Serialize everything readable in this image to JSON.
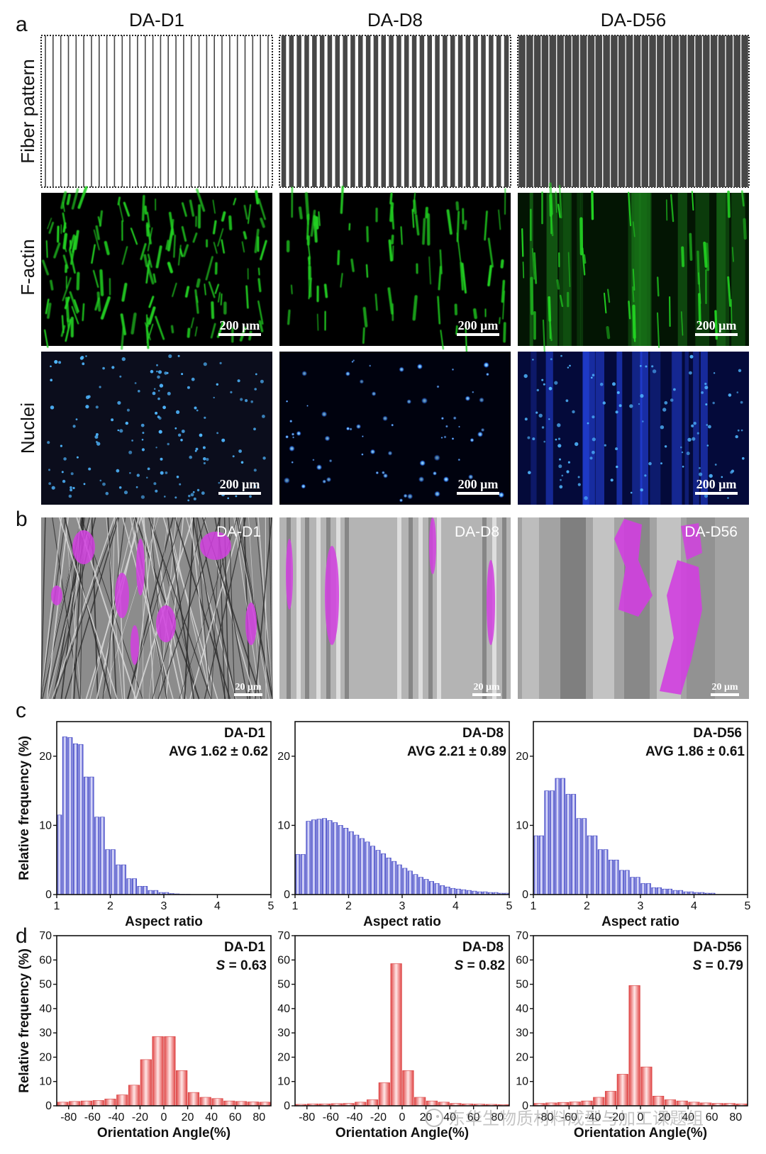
{
  "panels": {
    "a": "a",
    "b": "b",
    "c": "c",
    "d": "d"
  },
  "columns": [
    "DA-D1",
    "DA-D8",
    "DA-D56"
  ],
  "row_labels": {
    "fiber": "Fiber pattern",
    "factin": "F-actin",
    "nuclei": "Nuclei"
  },
  "fiber_counts": [
    30,
    30,
    30
  ],
  "scale_fluor": "200 μm",
  "scale_sem": "20 μm",
  "sem_labels": [
    "DA-D1",
    "DA-D8",
    "DA-D56"
  ],
  "colors": {
    "fiber_dark": "#474747",
    "factin": "#22d322",
    "nuclei": "#2a4cff",
    "cell": "#d23fe0",
    "aspect_bar": "#5e63d6",
    "orient_bar": "#e85a5a"
  },
  "watermark": "东华生物质材料成型与加工课题组",
  "chart_data": [
    {
      "type": "bar",
      "panel": "c",
      "title": "DA-D1",
      "stat": "AVG 1.62 ± 0.62",
      "xlabel": "Aspect ratio",
      "ylabel": "Relative frequency (%)",
      "xlim": [
        1,
        5
      ],
      "ylim": [
        0,
        25
      ],
      "xticks": [
        "1",
        "2",
        "3",
        "4",
        "5"
      ],
      "yticks": [
        "0",
        "10",
        "20"
      ],
      "bin_width": 0.1,
      "x": [
        1.0,
        1.1,
        1.2,
        1.3,
        1.4,
        1.5,
        1.6,
        1.7,
        1.8,
        1.9,
        2.0,
        2.1,
        2.2,
        2.3,
        2.4,
        2.5,
        2.6,
        2.7,
        2.8,
        2.9,
        3.0,
        3.1,
        3.2,
        3.3,
        3.4
      ],
      "values": [
        11.5,
        22.8,
        22.7,
        21.8,
        21.7,
        17.0,
        17.0,
        11.2,
        11.2,
        6.5,
        6.5,
        4.3,
        4.3,
        2.3,
        2.3,
        1.2,
        1.2,
        0.6,
        0.6,
        0.3,
        0.3,
        0.15,
        0.1,
        0.05,
        0.05
      ]
    },
    {
      "type": "bar",
      "panel": "c",
      "title": "DA-D8",
      "stat": "AVG 2.21 ± 0.89",
      "xlabel": "Aspect ratio",
      "ylabel": "Relative frequency (%)",
      "xlim": [
        1,
        5
      ],
      "ylim": [
        0,
        25
      ],
      "xticks": [
        "1",
        "2",
        "3",
        "4",
        "5"
      ],
      "yticks": [
        "0",
        "10",
        "20"
      ],
      "bin_width": 0.1,
      "x": [
        1.0,
        1.1,
        1.2,
        1.3,
        1.4,
        1.5,
        1.6,
        1.7,
        1.8,
        1.9,
        2.0,
        2.1,
        2.2,
        2.3,
        2.4,
        2.5,
        2.6,
        2.7,
        2.8,
        2.9,
        3.0,
        3.1,
        3.2,
        3.3,
        3.4,
        3.5,
        3.6,
        3.7,
        3.8,
        3.9,
        4.0,
        4.1,
        4.2,
        4.3,
        4.4,
        4.5,
        4.6,
        4.7,
        4.8,
        4.9
      ],
      "values": [
        5.8,
        5.8,
        10.6,
        10.8,
        10.9,
        11.0,
        10.7,
        10.4,
        10.0,
        9.6,
        9.1,
        8.6,
        8.1,
        7.6,
        7.0,
        6.4,
        5.9,
        5.3,
        4.8,
        4.3,
        3.8,
        3.4,
        2.9,
        2.5,
        2.2,
        1.9,
        1.6,
        1.3,
        1.1,
        0.9,
        0.8,
        0.7,
        0.6,
        0.5,
        0.4,
        0.4,
        0.3,
        0.3,
        0.2,
        0.2
      ]
    },
    {
      "type": "bar",
      "panel": "c",
      "title": "DA-D56",
      "stat": "AVG 1.86 ± 0.61",
      "xlabel": "Aspect ratio",
      "ylabel": "Relative frequency (%)",
      "xlim": [
        1,
        5
      ],
      "ylim": [
        0,
        25
      ],
      "xticks": [
        "1",
        "2",
        "3",
        "4",
        "5"
      ],
      "yticks": [
        "0",
        "10",
        "20"
      ],
      "bin_width": 0.1,
      "x": [
        1.0,
        1.1,
        1.2,
        1.3,
        1.4,
        1.5,
        1.6,
        1.7,
        1.8,
        1.9,
        2.0,
        2.1,
        2.2,
        2.3,
        2.4,
        2.5,
        2.6,
        2.7,
        2.8,
        2.9,
        3.0,
        3.1,
        3.2,
        3.3,
        3.4,
        3.5,
        3.6,
        3.7,
        3.8,
        3.9,
        4.0,
        4.1,
        4.2,
        4.3
      ],
      "values": [
        8.5,
        8.5,
        15.0,
        15.0,
        16.8,
        16.8,
        14.5,
        14.5,
        11.0,
        11.0,
        8.5,
        8.5,
        6.5,
        6.5,
        5.0,
        5.0,
        3.5,
        3.5,
        2.5,
        2.5,
        1.6,
        1.6,
        1.0,
        1.0,
        0.8,
        0.8,
        0.6,
        0.6,
        0.4,
        0.4,
        0.3,
        0.3,
        0.2,
        0.2
      ]
    },
    {
      "type": "bar",
      "panel": "d",
      "title": "DA-D1",
      "stat_symbol": "S",
      "stat_value": " = 0.63",
      "xlabel": "Orientation Angle(%)",
      "ylabel": "Relative frequency (%)",
      "xlim": [
        -90,
        90
      ],
      "ylim": [
        0,
        70
      ],
      "xticks": [
        "-80",
        "-60",
        "-40",
        "-20",
        "0",
        "20",
        "40",
        "60",
        "80"
      ],
      "yticks": [
        "0",
        "10",
        "20",
        "30",
        "40",
        "50",
        "60",
        "70"
      ],
      "bin_width": 10,
      "x": [
        -90,
        -80,
        -70,
        -60,
        -50,
        -40,
        -30,
        -20,
        -10,
        0,
        10,
        20,
        30,
        40,
        50,
        60,
        70,
        80
      ],
      "values": [
        1.5,
        1.8,
        2.0,
        2.2,
        2.8,
        4.5,
        8.5,
        19.0,
        28.5,
        28.5,
        14.5,
        5.5,
        3.5,
        3.0,
        2.0,
        1.8,
        1.6,
        1.5
      ]
    },
    {
      "type": "bar",
      "panel": "d",
      "title": "DA-D8",
      "stat_symbol": "S",
      "stat_value": " = 0.82",
      "xlabel": "Orientation Angle(%)",
      "ylabel": "Relative frequency (%)",
      "xlim": [
        -90,
        90
      ],
      "ylim": [
        0,
        70
      ],
      "xticks": [
        "-80",
        "-60",
        "-40",
        "-20",
        "0",
        "20",
        "40",
        "60",
        "80"
      ],
      "yticks": [
        "0",
        "10",
        "20",
        "30",
        "40",
        "50",
        "60",
        "70"
      ],
      "bin_width": 10,
      "x": [
        -90,
        -80,
        -70,
        -60,
        -50,
        -40,
        -30,
        -20,
        -10,
        0,
        10,
        20,
        30,
        40,
        50,
        60,
        70,
        80
      ],
      "values": [
        0.6,
        0.8,
        0.8,
        0.9,
        1.0,
        1.5,
        2.5,
        9.5,
        58.5,
        14.5,
        3.5,
        2.0,
        1.5,
        1.0,
        0.8,
        0.7,
        0.6,
        0.5
      ]
    },
    {
      "type": "bar",
      "panel": "d",
      "title": "DA-D56",
      "stat_symbol": "S",
      "stat_value": " = 0.79",
      "xlabel": "Orientation Angle(%)",
      "ylabel": "Relative frequency (%)",
      "xlim": [
        -90,
        90
      ],
      "ylim": [
        0,
        70
      ],
      "xticks": [
        "-80",
        "-60",
        "-40",
        "-20",
        "0",
        "20",
        "40",
        "60",
        "80"
      ],
      "yticks": [
        "0",
        "10",
        "20",
        "30",
        "40",
        "50",
        "60",
        "70"
      ],
      "bin_width": 10,
      "x": [
        -90,
        -80,
        -70,
        -60,
        -50,
        -40,
        -30,
        -20,
        -10,
        0,
        10,
        20,
        30,
        40,
        50,
        60,
        70,
        80
      ],
      "values": [
        1.0,
        1.2,
        1.4,
        1.6,
        2.0,
        3.5,
        6.0,
        13.0,
        49.5,
        16.0,
        4.0,
        2.5,
        2.0,
        1.5,
        1.2,
        1.0,
        1.0,
        0.8
      ]
    }
  ]
}
